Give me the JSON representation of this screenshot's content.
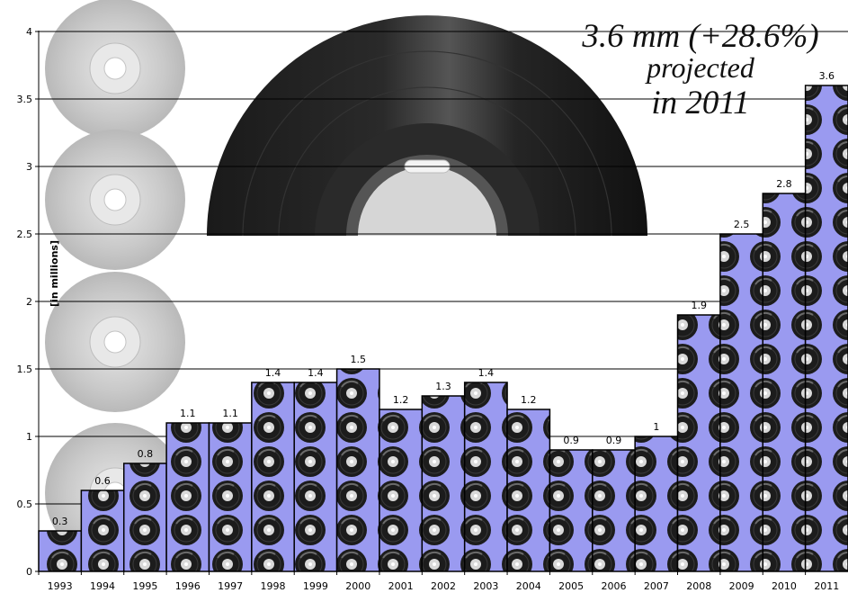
{
  "chart_data": {
    "type": "bar",
    "categories": [
      "1993",
      "1994",
      "1995",
      "1996",
      "1997",
      "1998",
      "1999",
      "2000",
      "2001",
      "2002",
      "2003",
      "2004",
      "2005",
      "2006",
      "2007",
      "2008",
      "2009",
      "2010",
      "2011"
    ],
    "values": [
      0.3,
      0.6,
      0.8,
      1.1,
      1.1,
      1.4,
      1.4,
      1.5,
      1.2,
      1.3,
      1.4,
      1.2,
      0.9,
      0.9,
      1,
      1.9,
      2.5,
      2.8,
      3.6
    ],
    "data_labels": [
      "0.3",
      "0.6",
      "0.8",
      "1.1",
      "1.1",
      "1.4",
      "1.4",
      "1.5",
      "1.2",
      "1.3",
      "1.4",
      "1.2",
      "0.9",
      "0.9",
      "1",
      "1.9",
      "2.5",
      "2.8",
      "3.6"
    ],
    "title": "",
    "xlabel": "",
    "ylabel": "[in millions]",
    "ylim": [
      0,
      4
    ],
    "yticks": [
      0,
      0.5,
      1,
      1.5,
      2,
      2.5,
      3,
      3.5,
      4
    ],
    "ytick_labels": [
      "0",
      "0.5",
      "1",
      "1.5",
      "2",
      "2.5",
      "3",
      "3.5",
      "4"
    ],
    "grid": true,
    "bar_color": "#9a9af0",
    "annotation": {
      "line1": "3.6 mm (+28.6%)",
      "line2": "projected",
      "line3": "in 2011"
    }
  }
}
